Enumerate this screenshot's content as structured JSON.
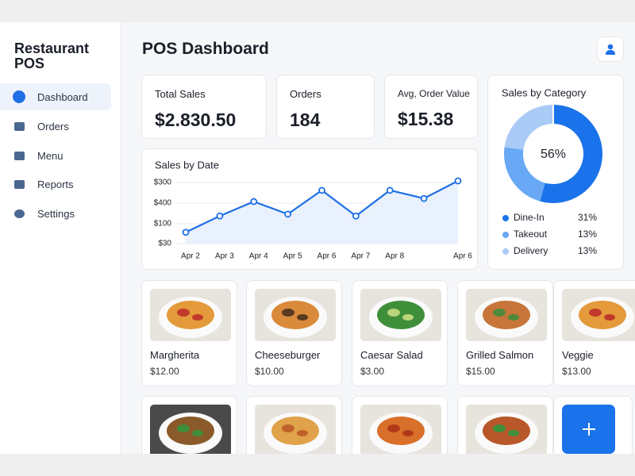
{
  "sidebar": {
    "title": "Restaurant POS",
    "nav": [
      "Dashboard",
      "Orders",
      "Menu",
      "Reports",
      "Settings"
    ]
  },
  "header": {
    "title": "POS Dashboard"
  },
  "stats": [
    {
      "label": "Total Sales",
      "value": "$2.830.50"
    },
    {
      "label": "Orders",
      "value": "184"
    },
    {
      "label": "Avg, Order Value",
      "value": "$15.38"
    }
  ],
  "sales_chart": {
    "type": "line",
    "title": "Sales by Date",
    "categories": [
      "Apr 2",
      "Apr 3",
      "Apr 4",
      "Apr 5",
      "Apr 6",
      "Apr 7",
      "Apr 8",
      null,
      "Apr 6"
    ],
    "values": [
      18,
      44,
      67,
      47,
      85,
      44,
      85,
      72,
      100
    ],
    "ylim": [
      0,
      100
    ],
    "y_axis_labels": [
      "$300",
      "$400",
      "$100",
      "$30"
    ],
    "color": "#1f6fe5",
    "grid": true
  },
  "category_chart": {
    "type": "donut",
    "title": "Sales by Category",
    "center_label": "56%",
    "categories": [
      "Dine-In",
      "Takeout",
      "Delivery"
    ],
    "values": [
      31,
      13,
      13
    ],
    "value_labels": [
      "31%",
      "13%",
      "13%"
    ],
    "colors": [
      "#1a73ea",
      "#68a8f4",
      "#a9cbf6"
    ]
  },
  "menu": [
    {
      "name": "Margherita",
      "price": "$12.00"
    },
    {
      "name": "Cheeseburger",
      "price": "$10.00"
    },
    {
      "name": "Caesar Salad",
      "price": "$3.00"
    },
    {
      "name": "Grilled Salmon",
      "price": "$15.00"
    },
    {
      "name": "Veggie",
      "price": "$13.00"
    }
  ]
}
